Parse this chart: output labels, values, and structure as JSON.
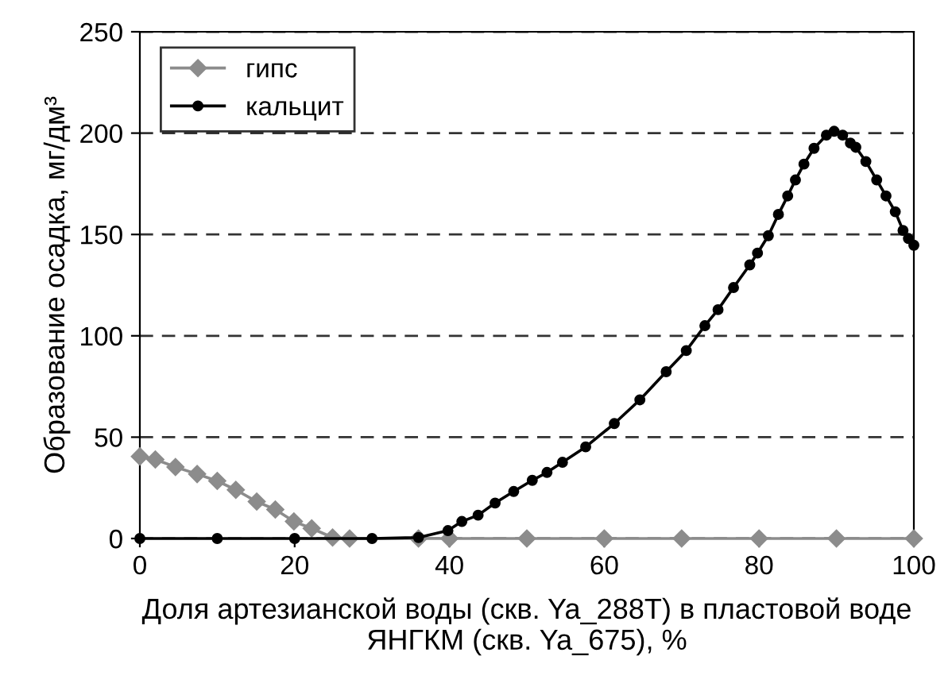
{
  "chart_data": {
    "type": "line",
    "xlabel": "Доля артезианской воды (скв. Ya_288T) в пластовой воде\nЯНГКМ (скв. Ya_675), %",
    "ylabel": "Образование осадка, мг/дм³",
    "xlim": [
      0,
      100
    ],
    "xticks": [
      0,
      20,
      40,
      60,
      80,
      100
    ],
    "ylim": [
      0,
      250
    ],
    "yticks": [
      0,
      50,
      100,
      150,
      200,
      250
    ],
    "grid": "y",
    "legend": "top left",
    "series": [
      {
        "name": "гипс",
        "color": "#8c8c8c",
        "marker": "diamond",
        "x": [
          0,
          2,
          4.6,
          7.4,
          10,
          12.4,
          15.1,
          17.5,
          19.9,
          22.2,
          24.9,
          27.1,
          36,
          40,
          50,
          60,
          70,
          80,
          90,
          100
        ],
        "values": [
          40.5,
          39,
          35.3,
          31.8,
          28.4,
          24,
          18.2,
          14.3,
          8.4,
          5,
          0.5,
          0,
          0,
          0,
          0,
          0,
          0,
          0,
          0,
          0
        ]
      },
      {
        "name": "кальцит",
        "color": "#000000",
        "marker": "circle",
        "x": [
          0,
          10,
          20,
          30,
          36,
          39.8,
          41.6,
          43.7,
          45.9,
          48.3,
          50.7,
          52.6,
          54.6,
          57.6,
          61.3,
          64.6,
          68,
          70.6,
          73,
          74.7,
          76.7,
          78.8,
          79.8,
          81.2,
          82.5,
          83.7,
          84.7,
          85.8,
          87.1,
          88.7,
          89.7,
          90.8,
          91.8,
          92.5,
          93.8,
          95.2,
          96.4,
          97.6,
          98.6,
          99.3,
          100
        ],
        "values": [
          0,
          0,
          0,
          0,
          0.5,
          3.9,
          8.4,
          11.5,
          17.5,
          23.2,
          28.7,
          32.6,
          37.6,
          45.2,
          56.7,
          68.4,
          82.3,
          92.7,
          105,
          112.9,
          123.8,
          135,
          140.8,
          149.4,
          159.9,
          169,
          176.9,
          184.7,
          192.5,
          199,
          200.9,
          199,
          195.1,
          193,
          186,
          176.9,
          169,
          161.2,
          152,
          148,
          144.7
        ]
      }
    ]
  }
}
